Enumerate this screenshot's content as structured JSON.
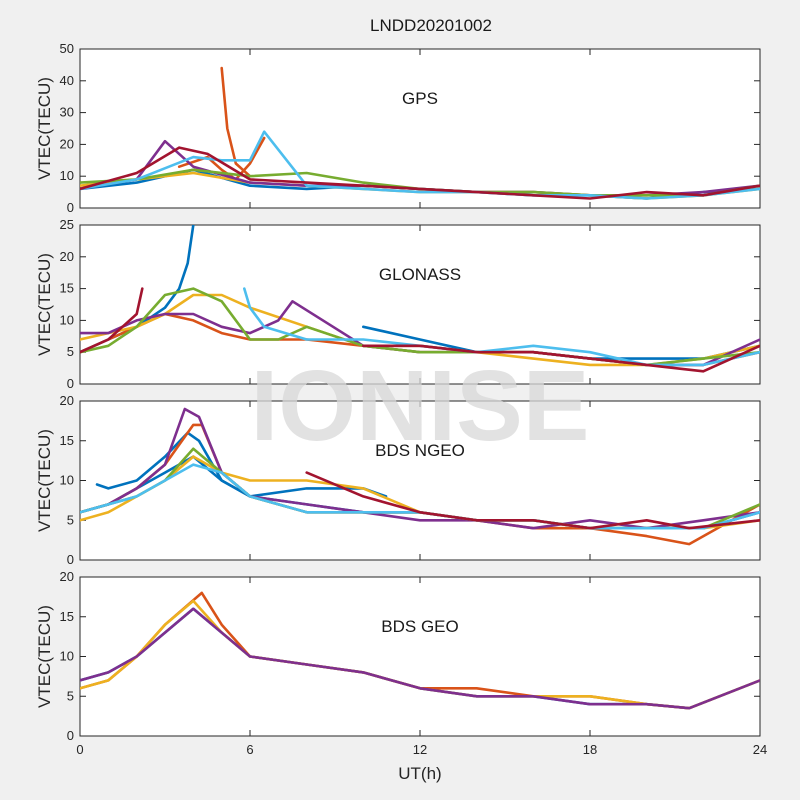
{
  "figure": {
    "title": "LNDD20201002",
    "watermark": "IONISE",
    "xlabel": "UT(h)"
  },
  "colors": [
    "#0072BD",
    "#D95319",
    "#EDB120",
    "#7E2F8E",
    "#77AC30",
    "#4DBEEE",
    "#A2142F"
  ],
  "chart_data": [
    {
      "type": "line",
      "panel_label": "GPS",
      "ylabel": "VTEC(TECU)",
      "xlim": [
        0,
        24
      ],
      "ylim": [
        0,
        50
      ],
      "xticks": [
        0,
        6,
        12,
        18,
        24
      ],
      "yticks": [
        0,
        10,
        20,
        30,
        40,
        50
      ],
      "series": [
        {
          "color": "#0072BD",
          "x": [
            0,
            2,
            4,
            6,
            8,
            10,
            12,
            14,
            16,
            18,
            20,
            22,
            24
          ],
          "y": [
            6,
            8,
            12,
            7,
            6,
            7,
            6,
            5,
            4,
            4,
            3,
            5,
            6
          ]
        },
        {
          "color": "#D95319",
          "x": [
            3.5,
            4.5,
            5,
            5.5,
            6,
            6.5
          ],
          "y": [
            13,
            16,
            12,
            9,
            14,
            22
          ]
        },
        {
          "color": "#D95319",
          "x": [
            5,
            5.2,
            5.5,
            6
          ],
          "y": [
            44,
            25,
            14,
            10
          ]
        },
        {
          "color": "#EDB120",
          "x": [
            0,
            2,
            4,
            6,
            8,
            10,
            12,
            14,
            16,
            18,
            20,
            22,
            24
          ],
          "y": [
            7,
            9,
            11,
            8,
            7,
            6,
            5,
            5,
            5,
            4,
            3,
            4,
            6
          ]
        },
        {
          "color": "#7E2F8E",
          "x": [
            0,
            2,
            3,
            4,
            6,
            8,
            10,
            12,
            14,
            16,
            18,
            20,
            22,
            24
          ],
          "y": [
            6,
            9,
            21,
            13,
            8,
            7,
            7,
            6,
            5,
            5,
            4,
            4,
            5,
            7
          ]
        },
        {
          "color": "#77AC30",
          "x": [
            0,
            2,
            4,
            6,
            8,
            10,
            12,
            14,
            16,
            18,
            20,
            22,
            24
          ],
          "y": [
            8,
            9,
            12,
            10,
            11,
            8,
            6,
            5,
            5,
            4,
            4,
            4,
            7
          ]
        },
        {
          "color": "#4DBEEE",
          "x": [
            0,
            2,
            4,
            5,
            6,
            6.5,
            8,
            10,
            12,
            14,
            16,
            18,
            20,
            22,
            24
          ],
          "y": [
            6,
            9,
            16,
            15,
            15,
            24,
            7,
            6,
            5,
            5,
            4,
            4,
            3,
            4,
            6
          ]
        },
        {
          "color": "#A2142F",
          "x": [
            0,
            2,
            3.5,
            4.5,
            6,
            8,
            10,
            12,
            14,
            16,
            18,
            20,
            22,
            24
          ],
          "y": [
            6,
            11,
            19,
            17,
            9,
            8,
            7,
            6,
            5,
            4,
            3,
            5,
            4,
            7
          ]
        }
      ]
    },
    {
      "type": "line",
      "panel_label": "GLONASS",
      "ylabel": "VTEC(TECU)",
      "xlim": [
        0,
        24
      ],
      "ylim": [
        0,
        25
      ],
      "xticks": [
        0,
        6,
        12,
        18,
        24
      ],
      "yticks": [
        0,
        5,
        10,
        15,
        20,
        25
      ],
      "series": [
        {
          "color": "#0072BD",
          "x": [
            0,
            1,
            2,
            3,
            3.5,
            3.8,
            4
          ],
          "y": [
            5,
            7,
            9,
            12,
            15,
            19,
            25
          ]
        },
        {
          "color": "#0072BD",
          "x": [
            10,
            12,
            14,
            16,
            18,
            20,
            22,
            24
          ],
          "y": [
            9,
            7,
            5,
            5,
            4,
            4,
            4,
            6
          ]
        },
        {
          "color": "#D95319",
          "x": [
            0,
            1,
            2,
            3,
            4,
            5,
            6,
            7,
            8,
            10,
            12,
            14,
            16,
            18,
            20,
            22,
            24
          ],
          "y": [
            5,
            7,
            9,
            11,
            10,
            8,
            7,
            7,
            7,
            6,
            6,
            5,
            5,
            4,
            3,
            3,
            5
          ]
        },
        {
          "color": "#EDB120",
          "x": [
            0,
            1,
            2,
            3,
            4,
            5,
            6,
            10,
            12,
            14,
            16,
            18,
            20,
            22,
            24
          ],
          "y": [
            7,
            8,
            9,
            11,
            14,
            14,
            12,
            6,
            5,
            5,
            4,
            3,
            3,
            4,
            6
          ]
        },
        {
          "color": "#7E2F8E",
          "x": [
            0,
            1,
            2,
            3,
            4,
            5,
            6,
            7,
            7.5,
            10,
            12,
            14,
            16,
            18,
            20,
            22,
            24
          ],
          "y": [
            8,
            8,
            10,
            11,
            11,
            9,
            8,
            10,
            13,
            6,
            5,
            5,
            5,
            4,
            3,
            3,
            7
          ]
        },
        {
          "color": "#77AC30",
          "x": [
            0,
            1,
            2,
            3,
            4,
            5,
            6,
            7,
            8,
            10,
            12,
            14,
            16,
            18,
            20,
            22,
            24
          ],
          "y": [
            5,
            6,
            9,
            14,
            15,
            13,
            7,
            7,
            9,
            6,
            5,
            5,
            5,
            4,
            3,
            4,
            5
          ]
        },
        {
          "color": "#4DBEEE",
          "x": [
            5.8,
            6,
            6.5,
            8,
            10,
            12,
            14,
            16,
            18,
            20,
            22,
            24
          ],
          "y": [
            15,
            12,
            9,
            7,
            7,
            6,
            5,
            6,
            5,
            3,
            3,
            5
          ]
        },
        {
          "color": "#A2142F",
          "x": [
            0,
            1,
            2,
            2.2
          ],
          "y": [
            5,
            7,
            11,
            15
          ]
        },
        {
          "color": "#A2142F",
          "x": [
            10,
            12,
            14,
            16,
            18,
            20,
            22,
            24
          ],
          "y": [
            6,
            6,
            5,
            5,
            4,
            3,
            2,
            6
          ]
        }
      ]
    },
    {
      "type": "line",
      "panel_label": "BDS NGEO",
      "ylabel": "VTEC(TECU)",
      "xlim": [
        0,
        24
      ],
      "ylim": [
        0,
        20
      ],
      "xticks": [
        0,
        6,
        12,
        18,
        24
      ],
      "yticks": [
        0,
        5,
        10,
        15,
        20
      ],
      "series": [
        {
          "color": "#0072BD",
          "x": [
            0,
            1,
            2,
            3,
            4,
            5,
            6,
            8,
            10,
            12,
            14,
            16,
            18,
            20,
            21,
            22,
            24
          ],
          "y": [
            6,
            7,
            9,
            11,
            13,
            10,
            8,
            7,
            6,
            6,
            5,
            5,
            4,
            4,
            4,
            4,
            6
          ]
        },
        {
          "color": "#0072BD",
          "x": [
            0.6,
            1,
            2,
            3,
            3.8,
            4.2,
            5,
            6,
            8,
            10,
            10.8
          ],
          "y": [
            9.5,
            9,
            10,
            13,
            16,
            15,
            10,
            8,
            9,
            9,
            8
          ]
        },
        {
          "color": "#D95319",
          "x": [
            0,
            1,
            2,
            3,
            4,
            4.3,
            5,
            6,
            8,
            10,
            12,
            14,
            16,
            18,
            20,
            21.5,
            24
          ],
          "y": [
            6,
            7,
            9,
            12,
            17,
            17,
            11,
            8,
            6,
            6,
            6,
            5,
            4,
            4,
            3,
            2,
            7
          ]
        },
        {
          "color": "#EDB120",
          "x": [
            0,
            1,
            2,
            3,
            4,
            5,
            6,
            8,
            10,
            12,
            14,
            16,
            18,
            20,
            22,
            24
          ],
          "y": [
            5,
            6,
            8,
            10,
            13,
            11,
            10,
            10,
            9,
            6,
            5,
            5,
            4,
            4,
            4,
            5
          ]
        },
        {
          "color": "#7E2F8E",
          "x": [
            0,
            1,
            2,
            3,
            3.7,
            4.2,
            5,
            6,
            8,
            10,
            12,
            14,
            16,
            18,
            20,
            22,
            24
          ],
          "y": [
            6,
            7,
            9,
            12,
            19,
            18,
            11,
            8,
            7,
            6,
            5,
            5,
            4,
            5,
            4,
            5,
            6
          ]
        },
        {
          "color": "#77AC30",
          "x": [
            0,
            1,
            2,
            3,
            4,
            5,
            6,
            8,
            10,
            12,
            14,
            16,
            18,
            20,
            22,
            24
          ],
          "y": [
            6,
            7,
            8,
            10,
            14,
            11,
            8,
            6,
            6,
            6,
            5,
            5,
            4,
            4,
            4,
            7
          ]
        },
        {
          "color": "#4DBEEE",
          "x": [
            0,
            1,
            2,
            3,
            4,
            5,
            6,
            8,
            10,
            12,
            14,
            16,
            18,
            20,
            22,
            24
          ],
          "y": [
            6,
            7,
            8,
            10,
            12,
            11,
            8,
            6,
            6,
            6,
            5,
            5,
            4,
            4,
            4,
            6
          ]
        },
        {
          "color": "#A2142F",
          "x": [
            8,
            10,
            12,
            14,
            16,
            18,
            20,
            21.5,
            24
          ],
          "y": [
            11,
            8,
            6,
            5,
            5,
            4,
            5,
            4,
            5
          ]
        }
      ]
    },
    {
      "type": "line",
      "panel_label": "BDS GEO",
      "ylabel": "VTEC(TECU)",
      "xlim": [
        0,
        24
      ],
      "ylim": [
        0,
        20
      ],
      "xticks": [
        0,
        6,
        12,
        18,
        24
      ],
      "yticks": [
        0,
        5,
        10,
        15,
        20
      ],
      "series": [
        {
          "color": "#0072BD",
          "x": [
            0,
            1,
            2,
            3,
            4,
            5,
            6,
            8,
            10,
            12,
            14,
            16,
            18,
            20,
            21.5,
            24
          ],
          "y": [
            7,
            8,
            10,
            13,
            16,
            13,
            10,
            9,
            8,
            6,
            5,
            5,
            4,
            4,
            3.5,
            7
          ]
        },
        {
          "color": "#D95319",
          "x": [
            0,
            1,
            2,
            3,
            4.3,
            5,
            6,
            8,
            10,
            12,
            14,
            16,
            18,
            20,
            21.5,
            24
          ],
          "y": [
            6,
            7,
            10,
            14,
            18,
            14,
            10,
            9,
            8,
            6,
            6,
            5,
            5,
            4,
            3.5,
            7
          ]
        },
        {
          "color": "#EDB120",
          "x": [
            0,
            1,
            2,
            3,
            4,
            5,
            6,
            8,
            10,
            12,
            14,
            16,
            18,
            20,
            21.5,
            24
          ],
          "y": [
            6,
            7,
            10,
            14,
            17,
            13,
            10,
            9,
            8,
            6,
            5,
            5,
            5,
            4,
            3.5,
            7
          ]
        },
        {
          "color": "#7E2F8E",
          "x": [
            0,
            1,
            2,
            3,
            4,
            5,
            6,
            8,
            10,
            12,
            14,
            16,
            18,
            20,
            21.5,
            24
          ],
          "y": [
            7,
            8,
            10,
            13,
            16,
            13,
            10,
            9,
            8,
            6,
            5,
            5,
            4,
            4,
            3.5,
            7
          ]
        }
      ]
    }
  ]
}
